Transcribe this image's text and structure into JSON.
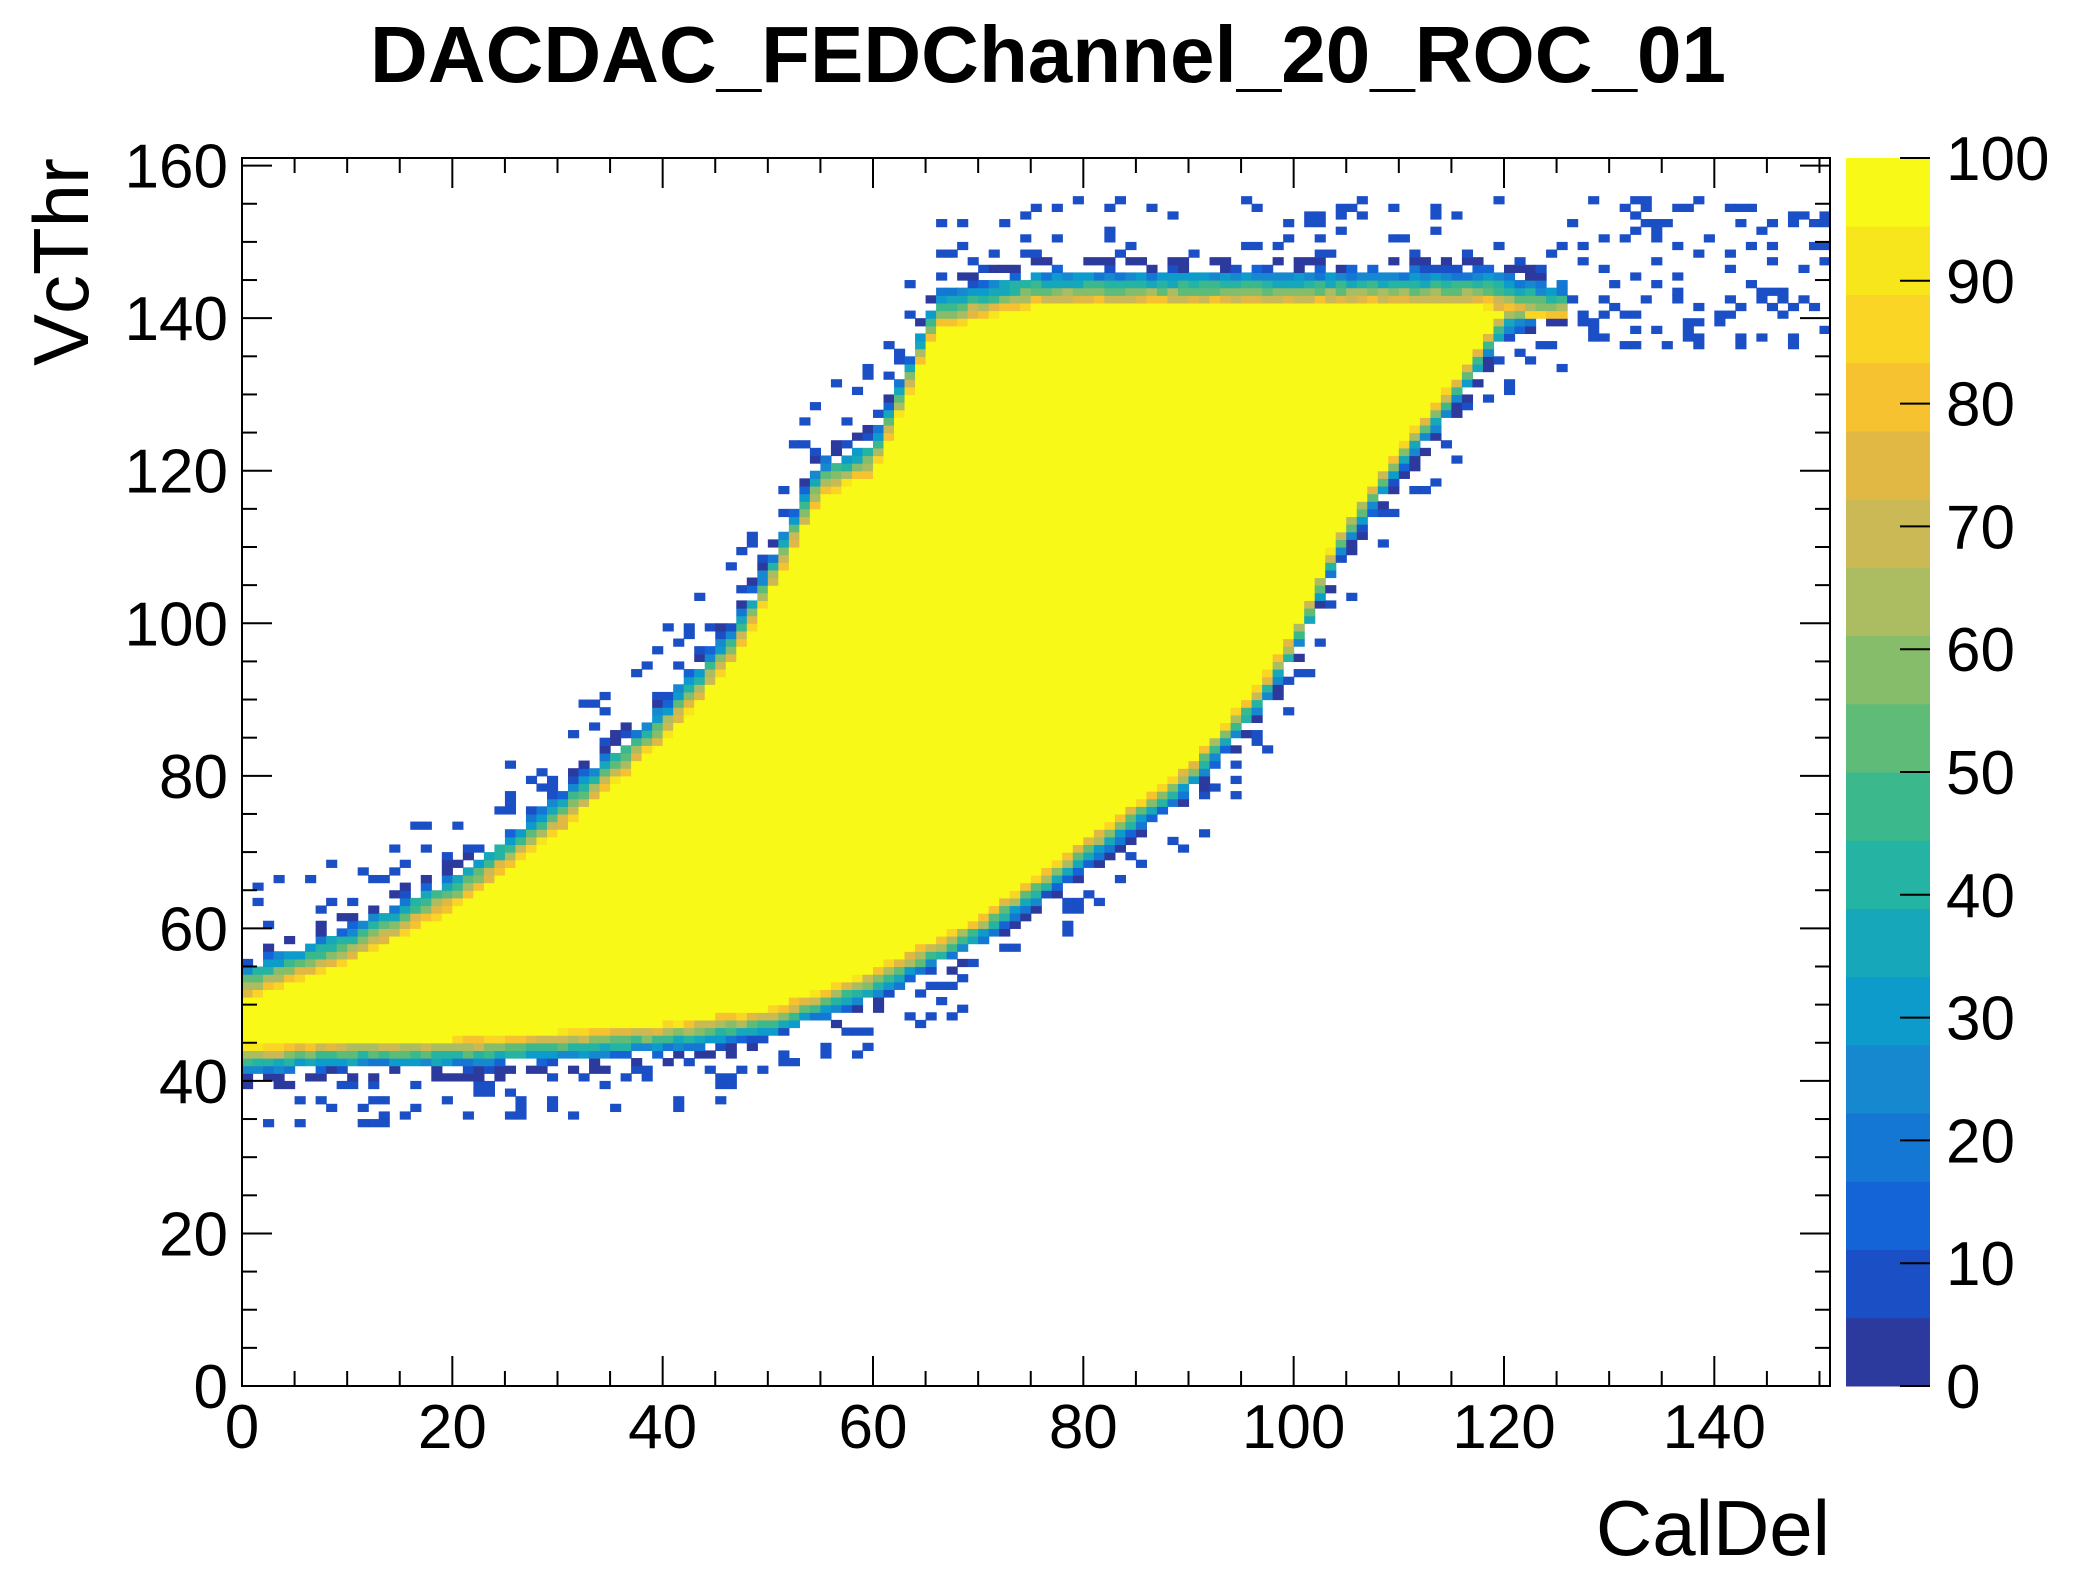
{
  "chart_data": {
    "type": "heatmap",
    "title": "DACDAC_FEDChannel_20_ROC_01",
    "xlabel": "CalDel",
    "ylabel": "VcThr",
    "xlim": [
      0,
      151
    ],
    "ylim": [
      0,
      161
    ],
    "x_ticks": [
      0,
      20,
      40,
      60,
      80,
      100,
      120,
      140
    ],
    "y_ticks": [
      0,
      20,
      40,
      60,
      80,
      100,
      120,
      140,
      160
    ],
    "z_range": [
      0,
      100
    ],
    "z_ticks": [
      0,
      10,
      20,
      30,
      40,
      50,
      60,
      70,
      80,
      90,
      100
    ],
    "palette": [
      "#2c3a9e",
      "#1b4fc6",
      "#1464d8",
      "#1577d4",
      "#1688cf",
      "#0d9bcc",
      "#17a7ba",
      "#25b3a3",
      "#3cb98c",
      "#5ebb78",
      "#86bd6b",
      "#acbc61",
      "#cab955",
      "#e2b845",
      "#f6c230",
      "#fbd526",
      "#f8e61c",
      "#f9f918"
    ],
    "region_description": "Band of bins at 100 between lower and upper boundary curves; edges fall off through palette; sparse low-value bins outside",
    "band": {
      "upper_boundary": [
        [
          0,
          52
        ],
        [
          10,
          57
        ],
        [
          20,
          64
        ],
        [
          30,
          74
        ],
        [
          40,
          86
        ],
        [
          47,
          97
        ],
        [
          52,
          110
        ],
        [
          55,
          118
        ],
        [
          60,
          121
        ],
        [
          63,
          130
        ],
        [
          66,
          140
        ],
        [
          75,
          143
        ],
        [
          100,
          143
        ],
        [
          118,
          143
        ],
        [
          125,
          141
        ]
      ],
      "lower_boundary": [
        [
          0,
          43
        ],
        [
          10,
          44
        ],
        [
          20,
          44
        ],
        [
          30,
          45
        ],
        [
          40,
          46
        ],
        [
          50,
          48
        ],
        [
          60,
          53
        ],
        [
          70,
          60
        ],
        [
          80,
          70
        ],
        [
          90,
          80
        ],
        [
          97,
          91
        ],
        [
          101,
          100
        ],
        [
          104,
          110
        ],
        [
          109,
          120
        ],
        [
          115,
          130
        ],
        [
          120,
          140
        ],
        [
          125,
          143
        ]
      ]
    }
  }
}
